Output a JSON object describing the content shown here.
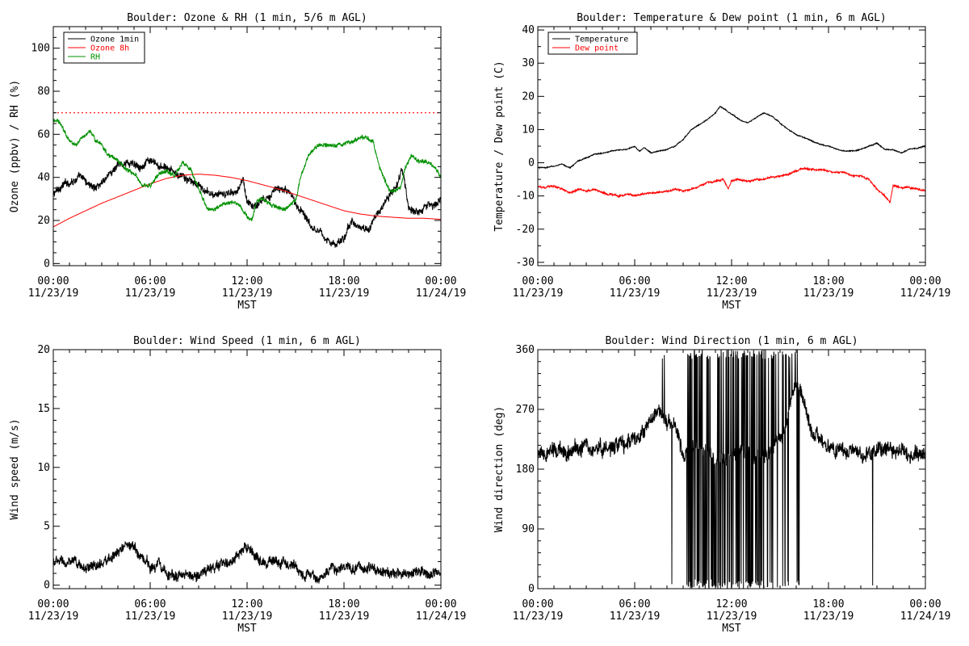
{
  "chart_data": [
    {
      "id": "ozone-rh",
      "type": "line",
      "title": "Boulder: Ozone & RH (1 min, 5/6 m AGL)",
      "ylabel": "Ozone (ppbv) / RH (%)",
      "xlabel": "MST",
      "xlim_hours": [
        0,
        24
      ],
      "x_ticks": [
        {
          "time": "00:00",
          "date": "11/23/19"
        },
        {
          "time": "06:00",
          "date": "11/23/19"
        },
        {
          "time": "12:00",
          "date": "11/23/19"
        },
        {
          "time": "18:00",
          "date": "11/23/19"
        },
        {
          "time": "00:00",
          "date": "11/24/19"
        }
      ],
      "ylim": [
        -1,
        110
      ],
      "y_ticks": [
        0,
        20,
        40,
        60,
        80,
        100
      ],
      "minor_y": 5,
      "reference_line": {
        "value": 70,
        "color": "#ff0000",
        "style": "dotted"
      },
      "legend": {
        "placement": "top-left"
      },
      "series": [
        {
          "name": "Ozone 1min",
          "color": "#000000",
          "noise": 3.0,
          "x": [
            0,
            0.5,
            1,
            1.5,
            2,
            2.5,
            3,
            3.5,
            4,
            4.5,
            5,
            5.5,
            6,
            6.5,
            7,
            7.5,
            8,
            8.5,
            9,
            9.5,
            10,
            10.5,
            11,
            11.5,
            11.75,
            12,
            12.5,
            13,
            13.5,
            14,
            14.5,
            15,
            15.5,
            16,
            16.5,
            17,
            17.5,
            18,
            18.5,
            19,
            19.5,
            20,
            20.5,
            21,
            21.3,
            21.6,
            22,
            22.5,
            23,
            23.5,
            24
          ],
          "y": [
            32,
            36,
            38,
            40,
            38,
            35,
            38,
            42,
            45,
            47,
            46,
            46,
            47,
            45,
            44,
            42,
            40,
            38,
            36,
            33,
            32,
            31,
            33,
            35,
            40,
            28,
            27,
            30,
            33,
            35,
            33,
            28,
            24,
            18,
            15,
            11,
            8,
            12,
            20,
            16,
            16,
            22,
            28,
            34,
            36,
            44,
            25,
            24,
            27,
            28,
            29
          ]
        },
        {
          "name": "Ozone 8h",
          "color": "#ff0000",
          "noise": 0,
          "x": [
            0,
            1,
            2,
            3,
            4,
            5,
            6,
            7,
            8,
            9,
            10,
            11,
            12,
            13,
            14,
            15,
            16,
            17,
            18,
            19,
            20,
            21,
            22,
            23,
            24
          ],
          "y": [
            17,
            21,
            24.5,
            28,
            31,
            34,
            37,
            39.5,
            41,
            41.5,
            41,
            40,
            38.5,
            36.5,
            34.5,
            32,
            29.5,
            27,
            24.5,
            23,
            22,
            21.5,
            21,
            21,
            20.5
          ]
        },
        {
          "name": "RH",
          "color": "#009000",
          "noise": 1.6,
          "x": [
            0,
            0.3,
            0.7,
            1,
            1.5,
            2,
            2.3,
            2.6,
            3,
            3.5,
            4,
            4.5,
            5,
            5.5,
            6,
            6.5,
            7,
            7.5,
            8,
            8.5,
            9,
            9.5,
            10,
            10.5,
            11,
            11.5,
            12,
            12.3,
            12.6,
            13,
            13.5,
            14,
            14.5,
            15,
            15.3,
            15.8,
            16.2,
            16.8,
            17.5,
            18,
            18.5,
            19,
            19.5,
            19.8,
            20.2,
            20.8,
            21.2,
            21.5,
            21.8,
            22.2,
            22.5,
            23,
            23.5,
            24
          ],
          "y": [
            66,
            67,
            62,
            57,
            55,
            60,
            62,
            57,
            55,
            50,
            48,
            44,
            42,
            36,
            36,
            41,
            43,
            40,
            47,
            44,
            35,
            26,
            25,
            27,
            28,
            27,
            22,
            20,
            29,
            30,
            27,
            26,
            26,
            29,
            40,
            50,
            54,
            55,
            54,
            55,
            56,
            59,
            58,
            56,
            45,
            34,
            33,
            35,
            45,
            50,
            48,
            47,
            46,
            40
          ]
        }
      ]
    },
    {
      "id": "temp-dew",
      "type": "line",
      "title": "Boulder: Temperature & Dew point (1 min, 6 m AGL)",
      "ylabel": "Temperature / Dew point (C)",
      "xlabel": "MST",
      "xlim_hours": [
        0,
        24
      ],
      "x_ticks": [
        {
          "time": "00:00",
          "date": "11/23/19"
        },
        {
          "time": "06:00",
          "date": "11/23/19"
        },
        {
          "time": "12:00",
          "date": "11/23/19"
        },
        {
          "time": "18:00",
          "date": "11/23/19"
        },
        {
          "time": "00:00",
          "date": "11/24/19"
        }
      ],
      "ylim": [
        -31,
        41
      ],
      "y_ticks": [
        -30,
        -20,
        -10,
        0,
        10,
        20,
        30,
        40
      ],
      "minor_y": 5,
      "legend": {
        "placement": "top-left"
      },
      "series": [
        {
          "name": "Temperature",
          "color": "#000000",
          "noise": 0.25,
          "x": [
            0,
            0.5,
            1,
            1.5,
            2,
            2.5,
            3,
            3.5,
            4,
            4.5,
            5,
            5.5,
            6,
            6.3,
            6.6,
            7,
            7.5,
            8,
            8.5,
            9,
            9.5,
            10,
            10.5,
            11,
            11.3,
            11.6,
            12,
            12.5,
            13,
            13.5,
            14,
            14.5,
            15,
            15.5,
            16,
            16.5,
            17,
            17.5,
            18,
            18.5,
            19,
            19.5,
            20,
            20.5,
            21,
            21.5,
            22,
            22.5,
            23,
            23.5,
            24
          ],
          "y": [
            -1.5,
            -1.5,
            -1,
            -0.5,
            -1.5,
            0.5,
            1.5,
            2.5,
            3,
            3.5,
            3.8,
            4,
            5,
            3.5,
            4.5,
            3,
            3.5,
            4,
            5,
            7,
            10,
            11.5,
            13,
            15,
            17,
            16,
            14.5,
            13,
            12,
            13.5,
            15,
            14,
            12,
            10,
            8.5,
            7.5,
            6.5,
            5.5,
            5,
            4,
            3.5,
            3.5,
            4,
            5,
            6,
            4,
            4,
            3,
            4,
            4.5,
            5
          ]
        },
        {
          "name": "Dew point",
          "color": "#ff0000",
          "noise": 0.45,
          "x": [
            0,
            0.5,
            1,
            1.5,
            2,
            2.5,
            3,
            3.5,
            4,
            4.5,
            5,
            5.5,
            6,
            6.5,
            7,
            7.5,
            8,
            8.5,
            9,
            9.5,
            10,
            10.5,
            11,
            11.5,
            11.8,
            12,
            12.5,
            13,
            13.5,
            14,
            14.5,
            15,
            15.5,
            16,
            16.5,
            17,
            17.5,
            18,
            18.5,
            19,
            19.5,
            20,
            20.5,
            21,
            21.5,
            21.8,
            22,
            22.5,
            23,
            23.5,
            24
          ],
          "y": [
            -7,
            -7.5,
            -7,
            -8,
            -9,
            -8,
            -8.5,
            -8,
            -9,
            -9.5,
            -10,
            -9.5,
            -10,
            -9.5,
            -9,
            -9,
            -8.5,
            -8,
            -8.5,
            -8,
            -7,
            -6,
            -5.5,
            -5,
            -8,
            -5.5,
            -5,
            -5.5,
            -5,
            -5,
            -4,
            -4,
            -3.5,
            -2.5,
            -1.5,
            -2,
            -2,
            -2.5,
            -3,
            -3,
            -4,
            -4,
            -5,
            -8,
            -10,
            -12,
            -7,
            -7.5,
            -7.5,
            -8,
            -8.5
          ]
        }
      ]
    },
    {
      "id": "wind-speed",
      "type": "line",
      "title": "Boulder: Wind Speed (1 min, 6 m AGL)",
      "ylabel": "Wind speed (m/s)",
      "xlabel": "MST",
      "xlim_hours": [
        0,
        24
      ],
      "x_ticks": [
        {
          "time": "00:00",
          "date": "11/23/19"
        },
        {
          "time": "06:00",
          "date": "11/23/19"
        },
        {
          "time": "12:00",
          "date": "11/23/19"
        },
        {
          "time": "18:00",
          "date": "11/23/19"
        },
        {
          "time": "00:00",
          "date": "11/24/19"
        }
      ],
      "ylim": [
        -0.3,
        20
      ],
      "y_ticks": [
        0,
        5,
        10,
        15,
        20
      ],
      "minor_y": 1,
      "series": [
        {
          "name": "",
          "color": "#000000",
          "noise": 0.75,
          "x": [
            0,
            1,
            2,
            3,
            4,
            4.5,
            5,
            5.5,
            6,
            6.5,
            7,
            7.5,
            8,
            9,
            10,
            11,
            11.5,
            12,
            12.5,
            13,
            14,
            15,
            15.5,
            16,
            16.5,
            17,
            18,
            19,
            20,
            21,
            22,
            23,
            24
          ],
          "y": [
            2,
            1.8,
            1.5,
            1.8,
            2.5,
            3.5,
            3,
            2.5,
            1.5,
            2,
            1.2,
            0.8,
            0.8,
            1,
            1.5,
            2,
            2.5,
            3,
            2.5,
            2,
            2,
            1.5,
            1,
            0.8,
            0.5,
            1.2,
            1.5,
            1.5,
            1.2,
            1,
            1,
            1,
            1
          ]
        }
      ]
    },
    {
      "id": "wind-direction",
      "type": "line",
      "title": "Boulder: Wind Direction (1 min, 6 m AGL)",
      "ylabel": "Wind direction (deg)",
      "xlabel": "MST",
      "xlim_hours": [
        0,
        24
      ],
      "x_ticks": [
        {
          "time": "00:00",
          "date": "11/23/19"
        },
        {
          "time": "06:00",
          "date": "11/23/19"
        },
        {
          "time": "12:00",
          "date": "11/23/19"
        },
        {
          "time": "18:00",
          "date": "11/23/19"
        },
        {
          "time": "00:00",
          "date": "11/24/19"
        }
      ],
      "ylim": [
        0,
        360
      ],
      "y_ticks": [
        0,
        90,
        180,
        270,
        360
      ],
      "minor_y": 18,
      "series": [
        {
          "name": "",
          "color": "#000000",
          "noise": 20,
          "x": [
            0,
            1,
            2,
            3,
            4,
            5,
            6,
            6.5,
            7,
            7.5,
            8,
            8.5,
            9,
            10,
            11,
            12,
            13,
            14,
            15,
            15.5,
            16,
            16.5,
            17,
            18,
            19,
            20,
            21,
            22,
            23,
            24
          ],
          "y": [
            195,
            205,
            210,
            215,
            210,
            215,
            225,
            230,
            250,
            270,
            260,
            230,
            200,
            220,
            200,
            200,
            210,
            200,
            220,
            260,
            320,
            280,
            230,
            215,
            205,
            200,
            210,
            205,
            205,
            205
          ],
          "spike_windows": [
            [
              7.3,
              8.3,
              0.1
            ],
            [
              9.2,
              14.0,
              0.55
            ],
            [
              14.0,
              16.2,
              0.22
            ],
            [
              20.2,
              21.9,
              0.04
            ]
          ]
        }
      ]
    }
  ]
}
